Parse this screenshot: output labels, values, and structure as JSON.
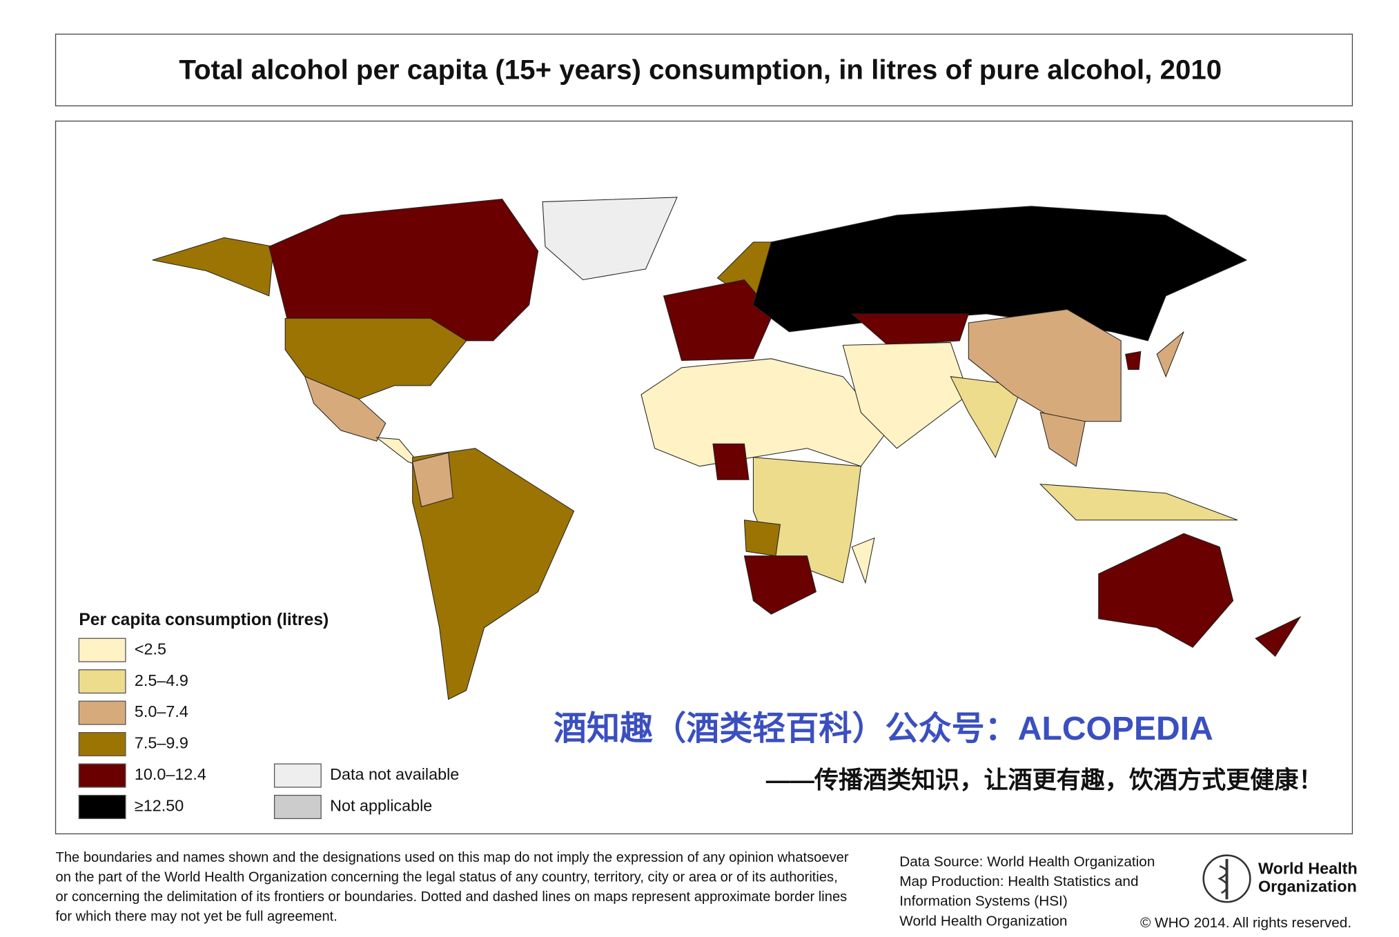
{
  "header": {
    "title": "Total alcohol per capita (15+ years) consumption, in litres of pure alcohol, 2010"
  },
  "legend": {
    "title": "Per capita consumption (litres)",
    "items": [
      {
        "label": "<2.5",
        "color": "#fff2c4"
      },
      {
        "label": "2.5–4.9",
        "color": "#ecdc8c"
      },
      {
        "label": "5.0–7.4",
        "color": "#d7aa7c"
      },
      {
        "label": "7.5–9.9",
        "color": "#9c7404"
      },
      {
        "label": "10.0–12.4",
        "color": "#6a0000"
      },
      {
        "label": "≥12.50",
        "color": "#000000"
      },
      {
        "label": "Data not available",
        "color": "#eeeeee"
      },
      {
        "label": "Not applicable",
        "color": "#cccccc"
      }
    ]
  },
  "watermark": {
    "line1": "酒知趣（酒类轻百科）公众号：ALCOPEDIA",
    "line2": "——传播酒类知识，让酒更有趣，饮酒方式更健康！"
  },
  "footer": {
    "disclaimer": [
      "The boundaries and names shown and the designations used on this map do not imply the expression of any opinion whatsoever",
      "on the part of the World Health Organization concerning the legal status of any country, territory, city or area or of its authorities,",
      "or concerning the delimitation of its frontiers or boundaries. Dotted and dashed lines on maps represent approximate border lines",
      "for which there may not yet be full agreement."
    ],
    "source": [
      "Data Source: World Health Organization",
      "Map Production: Health Statistics and",
      "Information Systems (HSI)",
      "World Health Organization"
    ],
    "logo": [
      "World Health",
      "Organization"
    ],
    "copyright": "© WHO 2014. All rights reserved."
  }
}
